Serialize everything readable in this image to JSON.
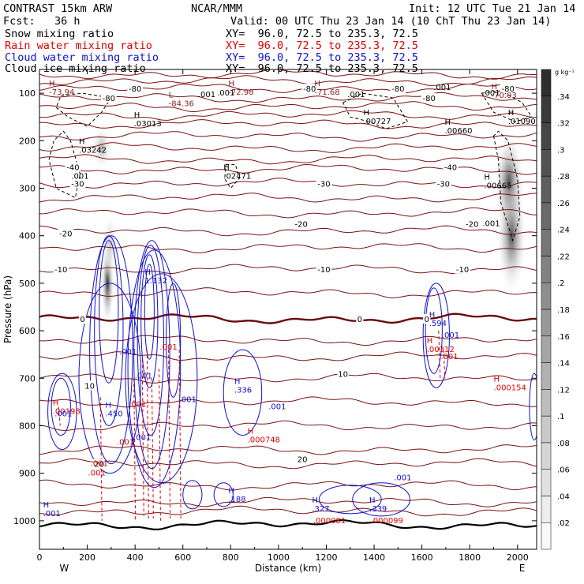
{
  "header": {
    "model": "CONTRAST 15km ARW",
    "org": "NCAR/MMM",
    "init": "Init: 12 UTC Tue 21 Jan 14",
    "fcst": "Fcst:   36 h",
    "valid": "Valid: 00 UTC Thu 23 Jan 14 (10 ChT Thu 23 Jan 14)"
  },
  "fields": [
    {
      "name": "Snow mixing ratio",
      "xy": "XY=  96.0, 72.5 to 235.3, 72.5",
      "color": "#000000"
    },
    {
      "name": "Rain water mixing ratio",
      "xy": "XY=  96.0, 72.5 to 235.3, 72.5",
      "color": "#e00000"
    },
    {
      "name": "Cloud water mixing ratio",
      "xy": "XY=  96.0, 72.5 to 235.3, 72.5",
      "color": "#1010d0"
    },
    {
      "name": "Cloud ice mixing ratio",
      "xy": "XY=  96.0, 72.5 to 235.3, 72.5",
      "color": "#000000"
    }
  ],
  "chart_data": {
    "type": "heatmap",
    "xlabel": "Distance (km)",
    "ylabel": "Pressure (hPa)",
    "xlim": [
      0,
      2080
    ],
    "ylim": [
      1060,
      50
    ],
    "xticks": [
      0,
      200,
      400,
      600,
      800,
      1000,
      1200,
      1400,
      1600,
      1800,
      2000
    ],
    "yticks": [
      100,
      200,
      300,
      400,
      500,
      600,
      700,
      800,
      900,
      1000
    ],
    "west_label": "W",
    "east_label": "E",
    "colorbar": {
      "unit": "g kg⁻¹",
      "ticks": [
        ".02",
        ".04",
        ".06",
        ".08",
        ".1",
        ".12",
        ".14",
        ".16",
        ".18",
        ".2",
        ".22",
        ".24",
        ".26",
        ".28",
        ".3",
        ".32",
        ".34"
      ],
      "min": 0,
      "max": 0.36
    },
    "snow_shading": [
      {
        "x": 260,
        "p": 215,
        "sx": 25,
        "sp": 25,
        "v": 0.14
      },
      {
        "x": 285,
        "p": 500,
        "sx": 16,
        "sp": 50,
        "v": 0.35
      },
      {
        "x": 295,
        "p": 420,
        "sx": 18,
        "sp": 40,
        "v": 0.1
      },
      {
        "x": 1965,
        "p": 290,
        "sx": 35,
        "sp": 60,
        "v": 0.33
      },
      {
        "x": 1975,
        "p": 400,
        "sx": 35,
        "sp": 70,
        "v": 0.3
      }
    ],
    "isotherms": [
      {
        "label": "-80",
        "p": 90,
        "at_x": [
          400,
          1130,
          1500,
          1960
        ]
      },
      {
        "label": "-80",
        "p": 110,
        "at_x": [
          290,
          1630
        ]
      },
      {
        "label": "-40",
        "p": 255,
        "at_x": [
          140,
          1720
        ]
      },
      {
        "label": "-30",
        "p": 290,
        "at_x": [
          160,
          1190,
          1690
        ]
      },
      {
        "label": "-20",
        "p": 375,
        "at_x": [
          1095,
          1810
        ]
      },
      {
        "label": "-20",
        "p": 395,
        "at_x": [
          110
        ]
      },
      {
        "label": "-10",
        "p": 470,
        "at_x": [
          90,
          1190,
          1770
        ]
      },
      {
        "label": "0",
        "p": 575,
        "at_x": [
          180,
          1340,
          1620
        ]
      },
      {
        "label": "10",
        "p": 690,
        "at_x": [
          1270
        ]
      },
      {
        "label": "10",
        "p": 715,
        "at_x": [
          210
        ]
      },
      {
        "label": "20",
        "p": 870,
        "at_x": [
          1100
        ]
      },
      {
        "label": "20",
        "p": 880,
        "at_x": [
          250
        ]
      }
    ],
    "extrema_labels": [
      {
        "mark": "H",
        "value": "-73.94",
        "x": 60,
        "p": 88,
        "color": "#8b1a1a"
      },
      {
        "mark": "H",
        "value": "-72.98",
        "x": 810,
        "p": 88,
        "color": "#8b1a1a"
      },
      {
        "mark": "H",
        "value": "-71.68",
        "x": 1170,
        "p": 88,
        "color": "#8b1a1a"
      },
      {
        "mark": "H",
        "value": "-70.03",
        "x": 1910,
        "p": 95,
        "color": "#8b1a1a"
      },
      {
        "mark": "L",
        "value": "-84.36",
        "x": 560,
        "p": 112,
        "color": "#8b1a1a"
      },
      {
        "mark": "H",
        "value": ".03013",
        "x": 415,
        "p": 155,
        "color": "#000000"
      },
      {
        "mark": "H",
        "value": ".00727",
        "x": 1375,
        "p": 150,
        "color": "#000000"
      },
      {
        "mark": "H",
        "value": ".00660",
        "x": 1715,
        "p": 170,
        "color": "#000000"
      },
      {
        "mark": "H",
        "value": ".01090",
        "x": 1980,
        "p": 150,
        "color": "#000000"
      },
      {
        "mark": "H",
        "value": ".03242",
        "x": 185,
        "p": 210,
        "color": "#000000"
      },
      {
        "mark": "H",
        "value": ".02471",
        "x": 790,
        "p": 265,
        "color": "#000000"
      },
      {
        "mark": "H",
        "value": ".00665",
        "x": 1880,
        "p": 285,
        "color": "#000000"
      },
      {
        "mark": "H",
        "value": "1.132",
        "x": 460,
        "p": 485,
        "color": "#1010d0"
      },
      {
        "mark": "H",
        "value": ".594",
        "x": 1650,
        "p": 575,
        "color": "#1010d0"
      },
      {
        "mark": "H",
        "value": ".00312",
        "x": 1640,
        "p": 630,
        "color": "#e00000"
      },
      {
        "mark": "H",
        "value": ".336",
        "x": 835,
        "p": 715,
        "color": "#1010d0"
      },
      {
        "mark": "H",
        "value": ".450",
        "x": 295,
        "p": 765,
        "color": "#1010d0"
      },
      {
        "mark": "H",
        "value": ".00198",
        "x": 75,
        "p": 760,
        "color": "#e00000"
      },
      {
        "mark": "H",
        "value": ".000748",
        "x": 890,
        "p": 820,
        "color": "#e00000"
      },
      {
        "mark": "H",
        "value": ".000154",
        "x": 1920,
        "p": 710,
        "color": "#e00000"
      },
      {
        "mark": "H",
        "value": ".188",
        "x": 810,
        "p": 945,
        "color": "#1010d0"
      },
      {
        "mark": "H",
        "value": ".001",
        "x": 35,
        "p": 975,
        "color": "#1010d0"
      },
      {
        "mark": "H",
        "value": ".327",
        "x": 1160,
        "p": 965,
        "color": "#1010d0"
      },
      {
        "mark": "H",
        "value": ".339",
        "x": 1400,
        "p": 965,
        "color": "#1010d0"
      },
      {
        "mark": "",
        "value": ".000081",
        "x": 1165,
        "p": 990,
        "color": "#e00000"
      },
      {
        "mark": "",
        "value": ".000099",
        "x": 1405,
        "p": 990,
        "color": "#e00000"
      }
    ],
    "small_labels": [
      {
        "value": ".001",
        "x": 700,
        "p": 108,
        "color": "#000000"
      },
      {
        "value": ".001",
        "x": 780,
        "p": 105,
        "color": "#000000"
      },
      {
        "value": ".001",
        "x": 1325,
        "p": 108,
        "color": "#000000"
      },
      {
        "value": ".001",
        "x": 1890,
        "p": 105,
        "color": "#000000"
      },
      {
        "value": ".001",
        "x": 1685,
        "p": 93,
        "color": "#000000"
      },
      {
        "value": ".001",
        "x": 170,
        "p": 280,
        "color": "#000000"
      },
      {
        "value": ".001",
        "x": 1890,
        "p": 380,
        "color": "#000000"
      },
      {
        "value": ".001",
        "x": 370,
        "p": 650,
        "color": "#1010d0"
      },
      {
        "value": ".001",
        "x": 1720,
        "p": 615,
        "color": "#1010d0"
      },
      {
        "value": ".001",
        "x": 1715,
        "p": 660,
        "color": "#e00000"
      },
      {
        "value": ".001",
        "x": 540,
        "p": 640,
        "color": "#e00000"
      },
      {
        "value": ".001",
        "x": 435,
        "p": 700,
        "color": "#1010d0"
      },
      {
        "value": ".001",
        "x": 620,
        "p": 750,
        "color": "#1010d0"
      },
      {
        "value": ".001",
        "x": 995,
        "p": 765,
        "color": "#1010d0"
      },
      {
        "value": ".001",
        "x": 100,
        "p": 780,
        "color": "#1010d0"
      },
      {
        "value": ".001",
        "x": 430,
        "p": 830,
        "color": "#1010d0"
      },
      {
        "value": ".001",
        "x": 1520,
        "p": 915,
        "color": "#1010d0"
      },
      {
        "value": ".001",
        "x": 250,
        "p": 885,
        "color": "#e00000"
      },
      {
        "value": ".001",
        "x": 360,
        "p": 840,
        "color": "#e00000"
      },
      {
        "value": ".001",
        "x": 240,
        "p": 905,
        "color": "#e00000"
      },
      {
        "value": ".001",
        "x": 410,
        "p": 760,
        "color": "#e00000"
      }
    ]
  }
}
